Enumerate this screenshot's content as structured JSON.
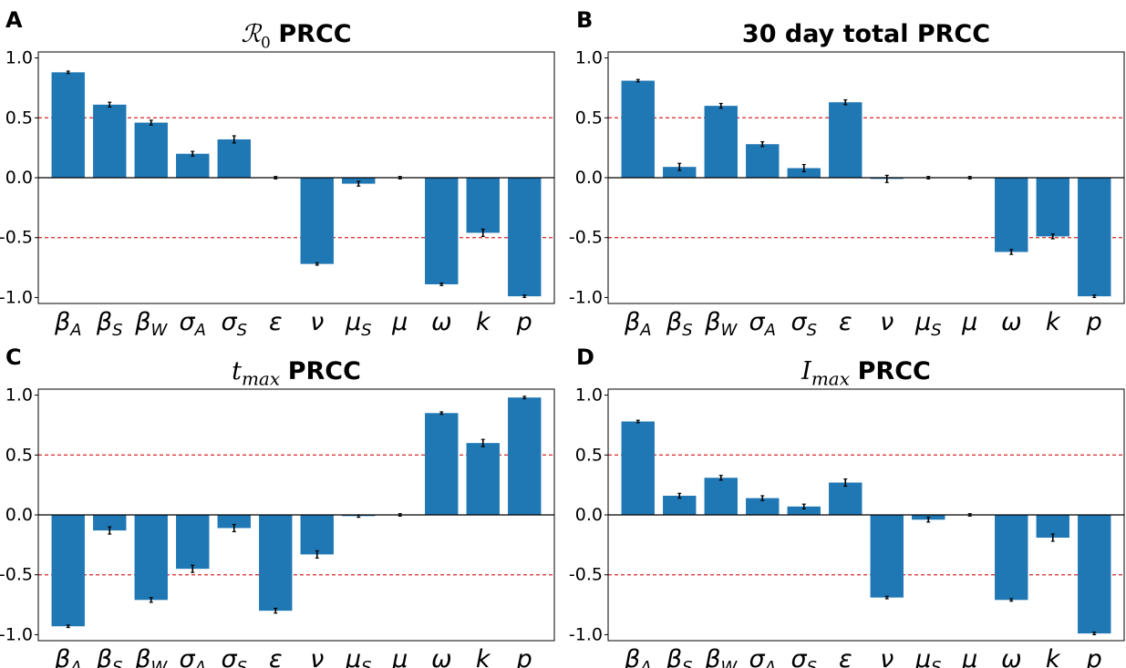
{
  "panels": [
    {
      "letter": "A",
      "title_math": "ℛ",
      "title_sub": "0",
      "title_text": "PRCC"
    },
    {
      "letter": "B",
      "title_math": "",
      "title_sub": "",
      "title_text": "30 day total PRCC"
    },
    {
      "letter": "C",
      "title_math": "t",
      "title_sub": "max",
      "title_text": "PRCC"
    },
    {
      "letter": "D",
      "title_math": "I",
      "title_sub": "max",
      "title_text": "PRCC"
    }
  ],
  "chart_data": [
    {
      "type": "bar",
      "title": "ℛ0 PRCC",
      "categories": [
        {
          "base": "β",
          "sub": "A"
        },
        {
          "base": "β",
          "sub": "S"
        },
        {
          "base": "β",
          "sub": "W"
        },
        {
          "base": "σ",
          "sub": "A"
        },
        {
          "base": "σ",
          "sub": "S"
        },
        {
          "base": "ε",
          "sub": ""
        },
        {
          "base": "ν",
          "sub": ""
        },
        {
          "base": "μ",
          "sub": "S"
        },
        {
          "base": "μ",
          "sub": ""
        },
        {
          "base": "ω",
          "sub": ""
        },
        {
          "base": "k",
          "sub": ""
        },
        {
          "base": "p",
          "sub": ""
        }
      ],
      "values": [
        0.88,
        0.61,
        0.46,
        0.2,
        0.32,
        0.0,
        -0.72,
        -0.05,
        0.0,
        -0.89,
        -0.46,
        -0.99
      ],
      "errors": [
        0.01,
        0.02,
        0.02,
        0.02,
        0.03,
        0.01,
        0.01,
        0.02,
        0.01,
        0.01,
        0.03,
        0.01
      ],
      "ylim": [
        -1.05,
        1.05
      ],
      "yticks": [
        1.0,
        0.5,
        0.0,
        -0.5,
        -1.0
      ],
      "ytick_labels": [
        "1.0",
        "0.5",
        "0.0",
        "-0.5",
        "-1.0"
      ],
      "reference_lines": [
        0.5,
        -0.5
      ],
      "bar_color": "#1f77b4",
      "reference_color": "#d62728"
    },
    {
      "type": "bar",
      "title": "30 day total PRCC",
      "categories": [
        {
          "base": "β",
          "sub": "A"
        },
        {
          "base": "β",
          "sub": "S"
        },
        {
          "base": "β",
          "sub": "W"
        },
        {
          "base": "σ",
          "sub": "A"
        },
        {
          "base": "σ",
          "sub": "S"
        },
        {
          "base": "ε",
          "sub": ""
        },
        {
          "base": "ν",
          "sub": ""
        },
        {
          "base": "μ",
          "sub": "S"
        },
        {
          "base": "μ",
          "sub": ""
        },
        {
          "base": "ω",
          "sub": ""
        },
        {
          "base": "k",
          "sub": ""
        },
        {
          "base": "p",
          "sub": ""
        }
      ],
      "values": [
        0.81,
        0.09,
        0.6,
        0.28,
        0.08,
        0.63,
        -0.01,
        0.0,
        0.0,
        -0.62,
        -0.49,
        -0.99
      ],
      "errors": [
        0.01,
        0.03,
        0.02,
        0.02,
        0.03,
        0.02,
        0.03,
        0.01,
        0.01,
        0.02,
        0.02,
        0.01
      ],
      "ylim": [
        -1.05,
        1.05
      ],
      "yticks": [
        1.0,
        0.5,
        0.0,
        -0.5,
        -1.0
      ],
      "ytick_labels": [
        "1.0",
        "0.5",
        "0.0",
        "-0.5",
        "-1.0"
      ],
      "reference_lines": [
        0.5,
        -0.5
      ],
      "bar_color": "#1f77b4",
      "reference_color": "#d62728"
    },
    {
      "type": "bar",
      "title": "tmax PRCC",
      "categories": [
        {
          "base": "β",
          "sub": "A"
        },
        {
          "base": "β",
          "sub": "S"
        },
        {
          "base": "β",
          "sub": "W"
        },
        {
          "base": "σ",
          "sub": "A"
        },
        {
          "base": "σ",
          "sub": "S"
        },
        {
          "base": "ε",
          "sub": ""
        },
        {
          "base": "ν",
          "sub": ""
        },
        {
          "base": "μ",
          "sub": "S"
        },
        {
          "base": "μ",
          "sub": ""
        },
        {
          "base": "ω",
          "sub": ""
        },
        {
          "base": "k",
          "sub": ""
        },
        {
          "base": "p",
          "sub": ""
        }
      ],
      "values": [
        -0.93,
        -0.13,
        -0.71,
        -0.45,
        -0.11,
        -0.8,
        -0.33,
        -0.01,
        0.0,
        0.85,
        0.6,
        0.98
      ],
      "errors": [
        0.01,
        0.03,
        0.02,
        0.03,
        0.03,
        0.02,
        0.03,
        0.01,
        0.01,
        0.01,
        0.03,
        0.01
      ],
      "ylim": [
        -1.05,
        1.05
      ],
      "yticks": [
        1.0,
        0.5,
        0.0,
        -0.5,
        -1.0
      ],
      "ytick_labels": [
        "1.0",
        "0.5",
        "0.0",
        "-0.5",
        "-1.0"
      ],
      "reference_lines": [
        0.5,
        -0.5
      ],
      "bar_color": "#1f77b4",
      "reference_color": "#d62728"
    },
    {
      "type": "bar",
      "title": "Imax PRCC",
      "categories": [
        {
          "base": "β",
          "sub": "A"
        },
        {
          "base": "β",
          "sub": "S"
        },
        {
          "base": "β",
          "sub": "W"
        },
        {
          "base": "σ",
          "sub": "A"
        },
        {
          "base": "σ",
          "sub": "S"
        },
        {
          "base": "ε",
          "sub": ""
        },
        {
          "base": "ν",
          "sub": ""
        },
        {
          "base": "μ",
          "sub": "S"
        },
        {
          "base": "μ",
          "sub": ""
        },
        {
          "base": "ω",
          "sub": ""
        },
        {
          "base": "k",
          "sub": ""
        },
        {
          "base": "p",
          "sub": ""
        }
      ],
      "values": [
        0.78,
        0.16,
        0.31,
        0.14,
        0.07,
        0.27,
        -0.69,
        -0.04,
        0.0,
        -0.71,
        -0.19,
        -0.99
      ],
      "errors": [
        0.01,
        0.02,
        0.02,
        0.02,
        0.02,
        0.03,
        0.01,
        0.02,
        0.01,
        0.01,
        0.03,
        0.01
      ],
      "ylim": [
        -1.05,
        1.05
      ],
      "yticks": [
        1.0,
        0.5,
        0.0,
        -0.5,
        -1.0
      ],
      "ytick_labels": [
        "1.0",
        "0.5",
        "0.0",
        "-0.5",
        "-1.0"
      ],
      "reference_lines": [
        0.5,
        -0.5
      ],
      "bar_color": "#1f77b4",
      "reference_color": "#d62728"
    }
  ]
}
